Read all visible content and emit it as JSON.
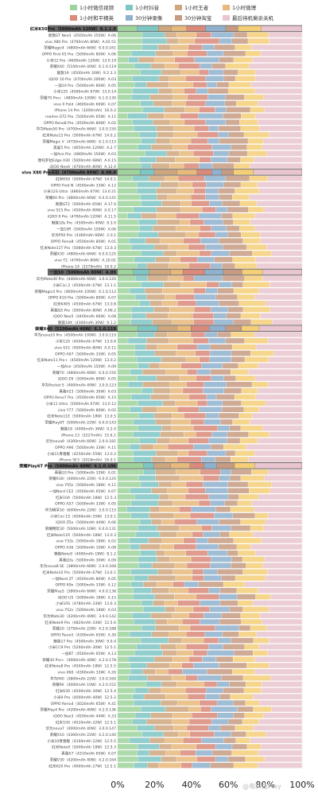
{
  "chart_data": {
    "type": "bar",
    "orientation": "horizontal",
    "stacked": true,
    "normalized": true,
    "xlim": [
      0,
      100
    ],
    "xticks": [
      "0%",
      "20%",
      "40%",
      "60%",
      "80%",
      "100%"
    ],
    "legend_position": "top",
    "series_colors": [
      "#9fd39c",
      "#7ec6c4",
      "#cfa77f",
      "#e7b97a",
      "#d98a7a",
      "#8fb1cf",
      "#c79b83",
      "#f4cf78",
      "#e9c5cf"
    ],
    "series": [
      {
        "name": "1小时微信视频"
      },
      {
        "name": "1小时抖音"
      },
      {
        "name": "1小时王者"
      },
      {
        "name": "1小时微博"
      },
      {
        "name": "1小时和平精英"
      },
      {
        "name": "30分钟录像"
      },
      {
        "name": "30分钟淘宝"
      },
      {
        "name": "30分钟"
      },
      {
        "name": "最后待机剩余关机"
      }
    ],
    "groups": [
      {
        "header": "红米K50Pro（5000mAh 120W）8.1.1.0",
        "rows": [
          "真我GT Neo3（4500mAh 150W）A.06",
          "vivo X80 Pro（4700mAh 80W）A.02.51",
          "荣耀Magic4（4800mAh 66W）6.0.0.161",
          "OPPO Find X5 Pro（5000mAh 80W）A.06",
          "小米12 Pro（4600mAh 120W）13.0.19",
          "荣耀X40（5100mAh 40W）6.1.0.119",
          "魅族19（4500mAh 30W）9.2.3.3",
          "iQOO 10 Pro（4700mAh 200W）A.03",
          "一加10 Pro（5000mAh 80W）A.05",
          "小米12S（4500mAh 67W）13.0.14",
          "荣耀70 Pro+（4800mAh 100W）6.1.0.130",
          "vivo X Fold（4600mAh 66W）A.07",
          "iPhone 14 Pro（3200mAh）16.0.2",
          "realme GT2 Pro（5000mAh 65W）A.11",
          "OPPO Reno8 Pro（4500mAh 80W）A.02",
          "华为Mate50 Pro（4700mAh 66W）3.0.0.150",
          "红米Note12 Pro（5000mAh 67W）14.0.2",
          "荣耀Magic V（4750mAh 66W）6.1.0.115",
          "黑鲨5 Pro（4650mAh 120W）A.2.7",
          "一加Ace Pro（4800mAh 150W）A.03",
          "摩托罗拉Edge X30（5000mAh 68W）A.0.15",
          "iQOO Neo6（4700mAh 80W）A.12.0"
        ]
      },
      {
        "header": "vivo X80 Pro天玑（4700mAh 80W）A.08.0",
        "rows": [
          "红米K50（5000mAh 67W）14.0.1",
          "OPPO Find N（4500mAh 33W）A.12",
          "小米12S Ultra（4860mAh 67W）13.0.21",
          "荣耀60 Pro（4800mAh 66W）6.0.0.141",
          "真我GT2（5000mAh 65W）A.17.0",
          "vivo S15 Pro（4500mAh 80W）A.0.17",
          "iQOO 9 Pro（4700mAh 120W）A.11.5",
          "魅族18s Pro（4500mAh 40W）9.3.0",
          "一加10R（5000mAh 150W）A.06",
          "华为P50 Pro（4360mAh 66W）2.0.1",
          "OPPO Reno8（4500mAh 80W）A.01",
          "红米Note11T Pro（5080mAh 67W）13.0.3",
          "荣耀X30（4800mAh 66W）6.0.0.125",
          "vivo T2（4700mAh 80W）A.10.02",
          "iPhone 14（3279mAh）16.0.2"
        ]
      },
      {
        "header": "一加10（5000mAh 80W）A.05",
        "rows": [
          "华为Mate40 Pro（4400mAh 66W）3.0.0.120",
          "小米Civi 2（4500mAh 67W）13.1.1",
          "荣耀Magic4 Pro（4600mAh 100W）6.1.0.112",
          "OPPO K10 Pro（5000mAh 80W）A.07",
          "红米K40S（4500mAh 67W）13.0.8",
          "真我Q5 Pro（5000mAh 80W）A.06.2",
          "iQOO Neo5（4400mAh 66W）A.08",
          "魅族18X（4300mAh 30W）9.1.2"
        ]
      },
      {
        "header": "荣耀X40（5100mAh 40W）6.1.0.119",
        "rows": [
          "华为nova10 Pro（4500mAh 100W）3.0.0.110",
          "小米12X（4500mAh 67W）13.0.6",
          "vivo S15（4500mAh 80W）A.0.11",
          "OPPO A97（5000mAh 33W）A.05",
          "红米Note11 Pro+（4500mAh 120W）13.0.2",
          "一加Ace（4500mAh 150W）A.09",
          "荣耀70（4800mAh 66W）6.0.0.150",
          "iQOO Z6（5000mAh 80W）A.05",
          "华为Pocket S（4000mAh 40W）3.0.0.123",
          "真我V23（5000mAh 30W）A.03",
          "OPPO Reno7 Pro（4500mAh 65W）A.15",
          "小米11 Ultra（5000mAh 67W）13.0.12",
          "vivo Y77（5000mAh 80W）A.02",
          "红米Note11E（5000mAh 18W）13.0.5",
          "荣耀Play6T（5000mAh 22W）6.0.0.143",
          "魅族18（4000mAh 36W）9.2.0",
          "iPhone 13（3227mAh）15.6.1",
          "华为nova9（4300mAh 66W）2.0.0.181",
          "OPPO A96（5000mAh 33W）A.11",
          "小米11青春版（4250mAh 55W）13.0.2",
          "iPhone SE3（2018mAh）16.0.1"
        ]
      },
      {
        "header": "荣耀Play6T Pro（5000mAh 40W）6.1.0.106",
        "rows": [
          "真我10 Pro（5000mAh 33W）A.01",
          "荣耀X30i（4000mAh 22W）6.0.0.120",
          "vivo Y55s（5000mAh 18W）A.11",
          "一加Nord CE2（4500mAh 65W）A.07",
          "红米10A（5000mAh 18W）12.5.3",
          "OPPO A57（5000mAh 33W）A.05",
          "华为畅享50（6000mAh 22W）3.0.0.115",
          "小米Civi 1S（4500mAh 55W）13.0.1",
          "iQOO Z5x（5000mAh 44W）A.06",
          "荣耀畅玩30（5000mAh 10W）6.0.0.131",
          "红米Note11R（5000mAh 18W）13.0.3",
          "vivo Y33s（5000mAh 18W）A.02",
          "OPPO A36（5000mAh 10W）A.08",
          "魅族Note9（4000mAh 18W）8.1.2",
          "真我Q3s（5000mAh 30W）A.09",
          "华为nova8 SE（3800mAh 66W）2.0.0.168",
          "红米Note10 Pro（5000mAh 67W）13.0.1",
          "一加Nord 2T（4500mAh 80W）A.05",
          "OPPO K9x（5000mAh 33W）A.12",
          "荣耀Play5（3800mAh 66W）4.0.0.138",
          "iQOO U5（5000mAh 18W）A.15",
          "小米10S（4780mAh 33W）13.0.3",
          "vivo Y52s（5000mAh 18W）A.03",
          "华为Mate30（4200mAh 40W）3.0.0.142",
          "红米Note9 Pro（4820mAh 33W）12.5.6",
          "荣耀20（3750mAh 22W）4.2.0.188",
          "OPPO Reno5（4300mAh 65W）A.30",
          "魅族17 Pro（4500mAh 30W）9.0.4",
          "小米CC9 Pro（5260mAh 30W）12.5.1",
          "一加8T（4500mAh 65W）A.13",
          "荣耀30 Pro+（4000mAh 40W）4.2.0.178",
          "红米Note8 Pro（4500mAh 18W）12.5.5",
          "vivo X60（4300mAh 33W）A.26",
          "华为P40（3800mAh 22W）3.0.0.160",
          "荣耀9X（4000mAh 10W）4.2.0.152",
          "红米K30（4500mAh 30W）12.5.4",
          "小米9 Pro（4000mAh 40W）12.5.2",
          "OPPO Reno4（4020mAh 65W）A.41",
          "荣耀Play4 Pro（4200mAh 40W）4.2.0.136",
          "iQOO Neo3（4500mAh 44W）A.33",
          "红米10X（4520mAh 22W）12.5.1",
          "华为nova7（4000mAh 40W）3.0.0.147",
          "荣耀X10（4300mAh 22W）4.2.0.140",
          "小米10青春版（4160mAh 22W）12.5.5",
          "红米Note9（5000mAh 18W）12.5.3",
          "真我X7（4310mAh 65W）A.07",
          "荣耀V30（4200mAh 40W）4.2.0.164",
          "红米K20 Pro（4000mAh 27W）12.5.1"
        ]
      }
    ]
  },
  "footnote": "@电科技Play"
}
